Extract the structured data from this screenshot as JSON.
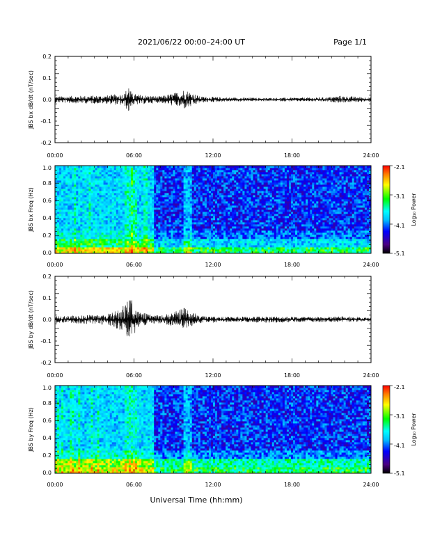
{
  "header": {
    "title": "2021/06/22  00:00–24:00 UT",
    "page": "Page 1/1"
  },
  "footer": {
    "xlabel": "Universal Time (hh:mm)"
  },
  "colorbar": {
    "label": "Log₁₀ Power",
    "ticks": [
      "-2.1",
      "-3.1",
      "-4.1",
      "-5.1"
    ],
    "range": [
      -5.1,
      -2.1
    ],
    "colors": [
      "#000000",
      "#4b0082",
      "#0000ff",
      "#00bfff",
      "#00ffff",
      "#00ff00",
      "#ffff00",
      "#ff8000",
      "#ff0000"
    ]
  },
  "chart_data": [
    {
      "type": "line",
      "title": "",
      "ylabel": "JBS bx dB/dt (nT/sec)",
      "xlabel": "",
      "xlim": [
        0,
        24
      ],
      "ylim": [
        -0.2,
        0.2
      ],
      "xticks": [
        "00:00",
        "06:00",
        "12:00",
        "18:00",
        "24:00"
      ],
      "yticks": [
        "0.2",
        "0.1",
        "0.0",
        "-0.1",
        "-0.2"
      ],
      "envelope": {
        "x": [
          0,
          2,
          4,
          5.3,
          5.6,
          5.8,
          6.2,
          7,
          8,
          9.3,
          9.8,
          10.2,
          11,
          13,
          16,
          20.5,
          21.6,
          24
        ],
        "ymax": [
          0.015,
          0.018,
          0.02,
          0.03,
          0.08,
          0.03,
          0.025,
          0.02,
          0.015,
          0.035,
          0.05,
          0.04,
          0.015,
          0.01,
          0.008,
          0.01,
          0.018,
          0.01
        ],
        "ymin": [
          -0.015,
          -0.018,
          -0.02,
          -0.03,
          -0.065,
          -0.03,
          -0.025,
          -0.02,
          -0.015,
          -0.035,
          -0.045,
          -0.04,
          -0.015,
          -0.01,
          -0.008,
          -0.01,
          -0.015,
          -0.01
        ]
      },
      "color": "#000000"
    },
    {
      "type": "heatmap",
      "title": "",
      "ylabel": "JBS bx Freq (Hz)",
      "xlabel": "",
      "xlim": [
        0,
        24
      ],
      "ylim": [
        0,
        1.0
      ],
      "xticks": [
        "00:00",
        "06:00",
        "12:00",
        "18:00",
        "24:00"
      ],
      "yticks": [
        "1.0",
        "0.8",
        "0.6",
        "0.4",
        "0.2",
        "0.0"
      ],
      "zlim": [
        -5.1,
        -2.1
      ]
    },
    {
      "type": "line",
      "title": "",
      "ylabel": "JBS by dB/dt (nT/sec)",
      "xlabel": "",
      "xlim": [
        0,
        24
      ],
      "ylim": [
        -0.2,
        0.2
      ],
      "xticks": [
        "00:00",
        "06:00",
        "12:00",
        "18:00",
        "24:00"
      ],
      "yticks": [
        "0.2",
        "0.1",
        "0.0",
        "-0.1",
        "-0.2"
      ],
      "envelope": {
        "x": [
          0,
          2,
          4,
          5.0,
          5.5,
          5.8,
          6.3,
          7,
          8,
          9.3,
          9.9,
          10.3,
          11,
          13,
          16,
          20.5,
          21.8,
          24
        ],
        "ymax": [
          0.015,
          0.02,
          0.025,
          0.05,
          0.09,
          0.12,
          0.04,
          0.025,
          0.018,
          0.04,
          0.065,
          0.04,
          0.018,
          0.012,
          0.015,
          0.012,
          0.015,
          0.01
        ],
        "ymin": [
          -0.015,
          -0.02,
          -0.025,
          -0.05,
          -0.09,
          -0.095,
          -0.04,
          -0.025,
          -0.018,
          -0.035,
          -0.04,
          -0.035,
          -0.018,
          -0.012,
          -0.015,
          -0.012,
          -0.012,
          -0.01
        ]
      },
      "color": "#000000"
    },
    {
      "type": "heatmap",
      "title": "",
      "ylabel": "JBS by Freq (Hz)",
      "xlabel": "",
      "xlim": [
        0,
        24
      ],
      "ylim": [
        0,
        1.0
      ],
      "xticks": [
        "00:00",
        "06:00",
        "12:00",
        "18:00",
        "24:00"
      ],
      "yticks": [
        "1.0",
        "0.8",
        "0.6",
        "0.4",
        "0.2",
        "0.0"
      ],
      "zlim": [
        -5.1,
        -2.1
      ]
    }
  ]
}
